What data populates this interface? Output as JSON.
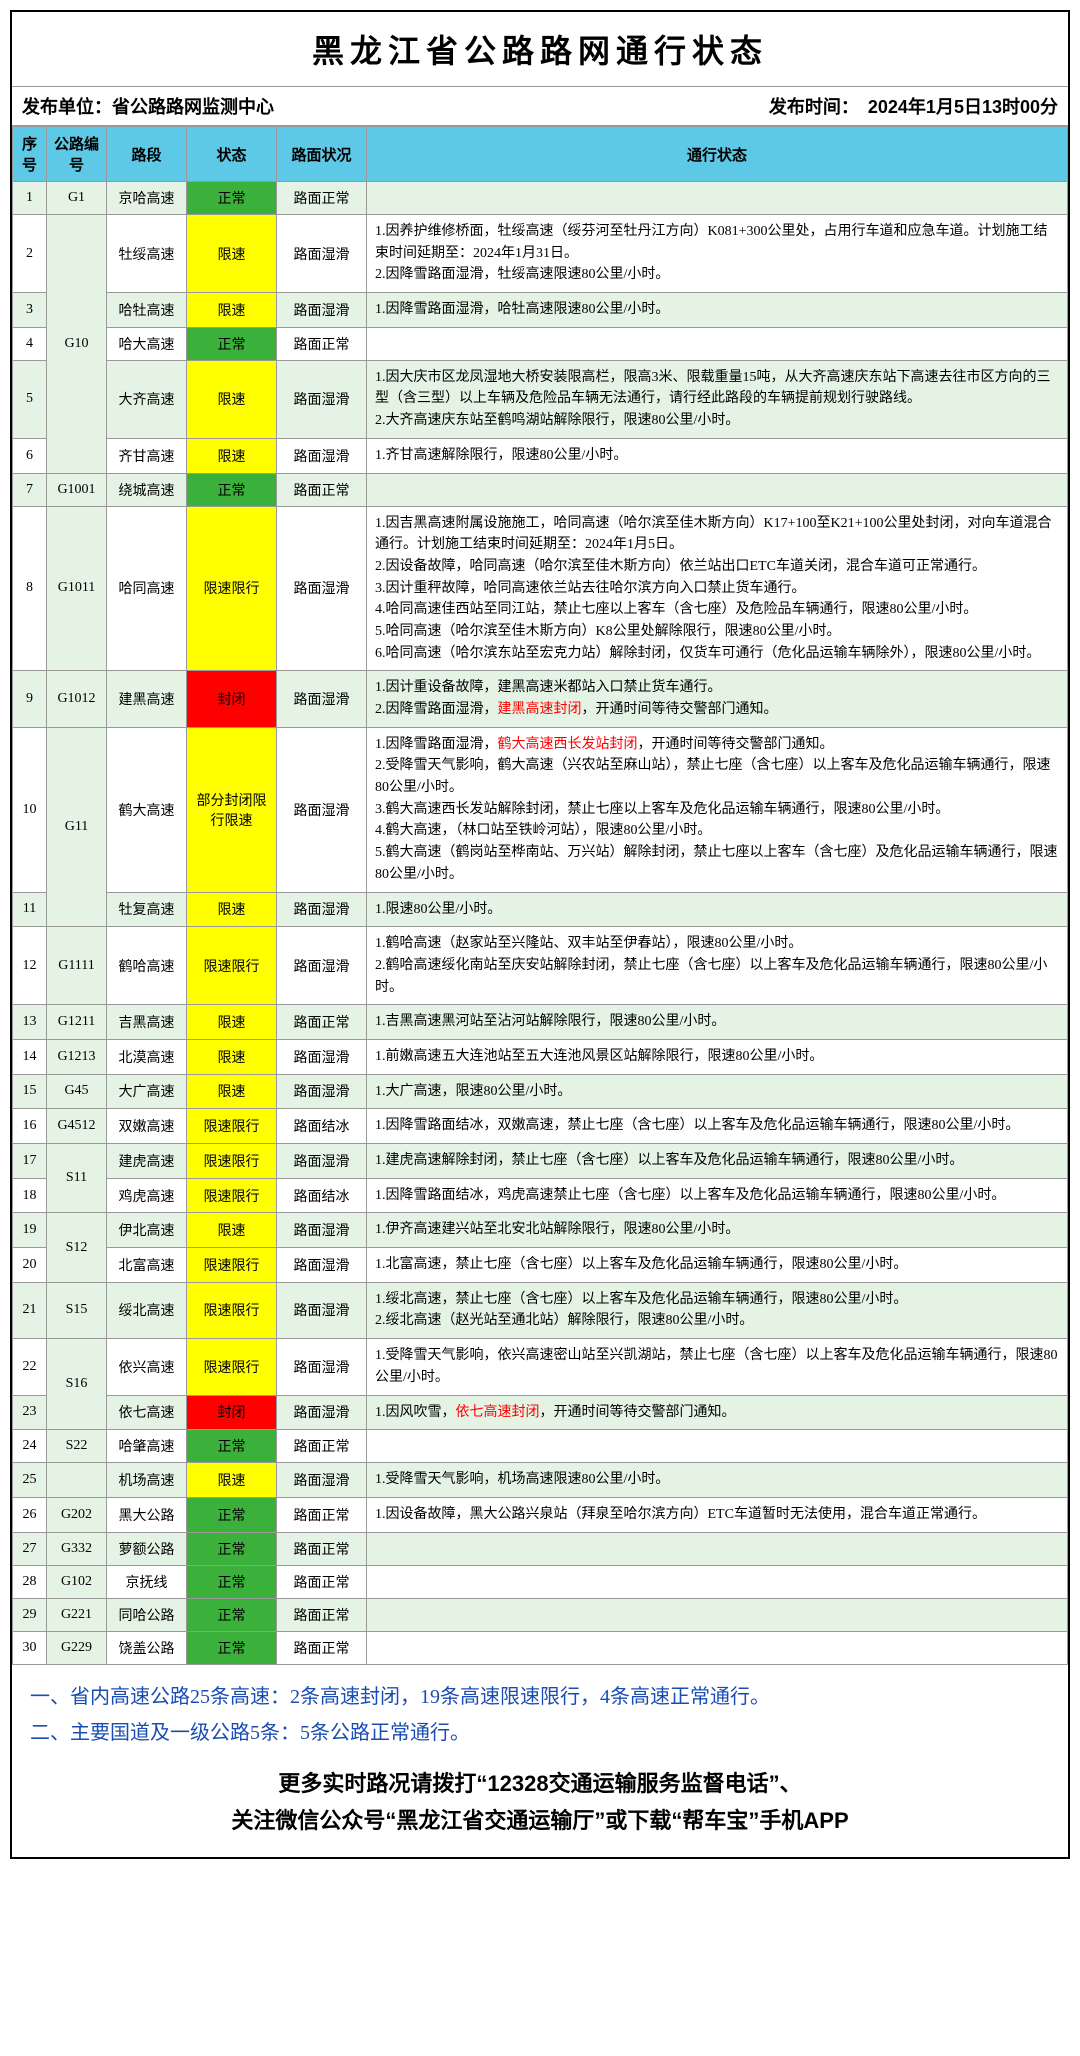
{
  "title": "黑龙江省公路路网通行状态",
  "publisher_label": "发布单位：省公路路网监测中心",
  "publish_time": "发布时间：　2024年1月5日13时00分",
  "headers": [
    "序号",
    "公路编号",
    "路段",
    "状态",
    "路面状况",
    "通行状态"
  ],
  "status_colors": {
    "正常": "status-green",
    "限速": "status-yellow",
    "限速限行": "status-yellow",
    "部分封闭限行限速": "status-yellow",
    "封闭": "status-red"
  },
  "rows": [
    {
      "idx": "1",
      "code": "G1",
      "rs": 1,
      "seg": "京哈高速",
      "status": "正常",
      "road": "路面正常",
      "desc": ""
    },
    {
      "idx": "2",
      "code": "G10",
      "rs": 5,
      "seg": "牡绥高速",
      "status": "限速",
      "road": "路面湿滑",
      "desc": "1.因养护维修桥面，牡绥高速（绥芬河至牡丹江方向）K081+300公里处，占用行车道和应急车道。计划施工结束时间延期至：2024年1月31日。<br>2.因降雪路面湿滑，牡绥高速限速80公里/小时。"
    },
    {
      "idx": "3",
      "seg": "哈牡高速",
      "status": "限速",
      "road": "路面湿滑",
      "desc": "1.因降雪路面湿滑，哈牡高速限速80公里/小时。"
    },
    {
      "idx": "4",
      "seg": "哈大高速",
      "status": "正常",
      "road": "路面正常",
      "desc": ""
    },
    {
      "idx": "5",
      "seg": "大齐高速",
      "status": "限速",
      "road": "路面湿滑",
      "desc": "1.因大庆市区龙凤湿地大桥安装限高栏，限高3米、限载重量15吨，从大齐高速庆东站下高速去往市区方向的三型（含三型）以上车辆及危险品车辆无法通行，请行经此路段的车辆提前规划行驶路线。<br>2.大齐高速庆东站至鹤鸣湖站解除限行，限速80公里/小时。"
    },
    {
      "idx": "6",
      "seg": "齐甘高速",
      "status": "限速",
      "road": "路面湿滑",
      "desc": "1.齐甘高速解除限行，限速80公里/小时。"
    },
    {
      "idx": "7",
      "code": "G1001",
      "rs": 1,
      "seg": "绕城高速",
      "status": "正常",
      "road": "路面正常",
      "desc": ""
    },
    {
      "idx": "8",
      "code": "G1011",
      "rs": 1,
      "seg": "哈同高速",
      "status": "限速限行",
      "road": "路面湿滑",
      "desc": "1.因吉黑高速附属设施施工，哈同高速（哈尔滨至佳木斯方向）K17+100至K21+100公里处封闭，对向车道混合通行。计划施工结束时间延期至：2024年1月5日。<br>2.因设备故障，哈同高速（哈尔滨至佳木斯方向）依兰站出口ETC车道关闭，混合车道可正常通行。<br>3.因计重秤故障，哈同高速依兰站去往哈尔滨方向入口禁止货车通行。<br>4.哈同高速佳西站至同江站，禁止七座以上客车（含七座）及危险品车辆通行，限速80公里/小时。<br>5.哈同高速（哈尔滨至佳木斯方向）K8公里处解除限行，限速80公里/小时。<br>6.哈同高速（哈尔滨东站至宏克力站）解除封闭，仅货车可通行（危化品运输车辆除外），限速80公里/小时。"
    },
    {
      "idx": "9",
      "code": "G1012",
      "rs": 1,
      "seg": "建黑高速",
      "status": "封闭",
      "road": "路面湿滑",
      "desc": "1.因计重设备故障，建黑高速米都站入口禁止货车通行。<br>2.因降雪路面湿滑，<span class='highlight-red'>建黑高速封闭</span>，开通时间等待交警部门通知。"
    },
    {
      "idx": "10",
      "code": "G11",
      "rs": 2,
      "seg": "鹤大高速",
      "status": "部分封闭限行限速",
      "road": "路面湿滑",
      "desc": "1.因降雪路面湿滑，<span class='highlight-red'>鹤大高速西长发站封闭</span>，开通时间等待交警部门通知。<br>2.受降雪天气影响，鹤大高速（兴农站至麻山站），禁止七座（含七座）以上客车及危化品运输车辆通行，限速80公里/小时。<br>3.鹤大高速西长发站解除封闭，禁止七座以上客车及危化品运输车辆通行，限速80公里/小时。<br>4.鹤大高速，（林口站至铁岭河站），限速80公里/小时。<br>5.鹤大高速（鹤岗站至桦南站、万兴站）解除封闭，禁止七座以上客车（含七座）及危化品运输车辆通行，限速80公里/小时。"
    },
    {
      "idx": "11",
      "seg": "牡复高速",
      "status": "限速",
      "road": "路面湿滑",
      "desc": "1.限速80公里/小时。"
    },
    {
      "idx": "12",
      "code": "G1111",
      "rs": 1,
      "seg": "鹤哈高速",
      "status": "限速限行",
      "road": "路面湿滑",
      "desc": "1.鹤哈高速（赵家站至兴隆站、双丰站至伊春站），限速80公里/小时。<br>2.鹤哈高速绥化南站至庆安站解除封闭，禁止七座（含七座）以上客车及危化品运输车辆通行，限速80公里/小时。"
    },
    {
      "idx": "13",
      "code": "G1211",
      "rs": 1,
      "seg": "吉黑高速",
      "status": "限速",
      "road": "路面正常",
      "desc": "1.吉黑高速黑河站至沾河站解除限行，限速80公里/小时。"
    },
    {
      "idx": "14",
      "code": "G1213",
      "rs": 1,
      "seg": "北漠高速",
      "status": "限速",
      "road": "路面湿滑",
      "desc": "1.前嫩高速五大连池站至五大连池风景区站解除限行，限速80公里/小时。"
    },
    {
      "idx": "15",
      "code": "G45",
      "rs": 1,
      "seg": "大广高速",
      "status": "限速",
      "road": "路面湿滑",
      "desc": "1.大广高速，限速80公里/小时。"
    },
    {
      "idx": "16",
      "code": "G4512",
      "rs": 1,
      "seg": "双嫩高速",
      "status": "限速限行",
      "road": "路面结冰",
      "desc": "1.因降雪路面结冰，双嫩高速，禁止七座（含七座）以上客车及危化品运输车辆通行，限速80公里/小时。"
    },
    {
      "idx": "17",
      "code": "S11",
      "rs": 2,
      "seg": "建虎高速",
      "status": "限速限行",
      "road": "路面湿滑",
      "desc": "1.建虎高速解除封闭，禁止七座（含七座）以上客车及危化品运输车辆通行，限速80公里/小时。"
    },
    {
      "idx": "18",
      "seg": "鸡虎高速",
      "status": "限速限行",
      "road": "路面结冰",
      "desc": "1.因降雪路面结冰，鸡虎高速禁止七座（含七座）以上客车及危化品运输车辆通行，限速80公里/小时。"
    },
    {
      "idx": "19",
      "code": "S12",
      "rs": 2,
      "seg": "伊北高速",
      "status": "限速",
      "road": "路面湿滑",
      "desc": "1.伊齐高速建兴站至北安北站解除限行，限速80公里/小时。"
    },
    {
      "idx": "20",
      "seg": "北富高速",
      "status": "限速限行",
      "road": "路面湿滑",
      "desc": "1.北富高速，禁止七座（含七座）以上客车及危化品运输车辆通行，限速80公里/小时。"
    },
    {
      "idx": "21",
      "code": "S15",
      "rs": 1,
      "seg": "绥北高速",
      "status": "限速限行",
      "road": "路面湿滑",
      "desc": "1.绥北高速，禁止七座（含七座）以上客车及危化品运输车辆通行，限速80公里/小时。<br>2.绥北高速（赵光站至通北站）解除限行，限速80公里/小时。"
    },
    {
      "idx": "22",
      "code": "S16",
      "rs": 2,
      "seg": "依兴高速",
      "status": "限速限行",
      "road": "路面湿滑",
      "desc": "1.受降雪天气影响，依兴高速密山站至兴凯湖站，禁止七座（含七座）以上客车及危化品运输车辆通行，限速80公里/小时。"
    },
    {
      "idx": "23",
      "seg": "依七高速",
      "status": "封闭",
      "road": "路面湿滑",
      "desc": "1.因风吹雪，<span class='highlight-red'>依七高速封闭</span>，开通时间等待交警部门通知。"
    },
    {
      "idx": "24",
      "code": "S22",
      "rs": 1,
      "seg": "哈肇高速",
      "status": "正常",
      "road": "路面正常",
      "desc": ""
    },
    {
      "idx": "25",
      "code": "",
      "rs": 1,
      "seg": "机场高速",
      "status": "限速",
      "road": "路面湿滑",
      "desc": "1.受降雪天气影响，机场高速限速80公里/小时。"
    },
    {
      "idx": "26",
      "code": "G202",
      "rs": 1,
      "seg": "黑大公路",
      "status": "正常",
      "road": "路面正常",
      "desc": "1.因设备故障，黑大公路兴泉站（拜泉至哈尔滨方向）ETC车道暂时无法使用，混合车道正常通行。"
    },
    {
      "idx": "27",
      "code": "G332",
      "rs": 1,
      "seg": "萝额公路",
      "status": "正常",
      "road": "路面正常",
      "desc": ""
    },
    {
      "idx": "28",
      "code": "G102",
      "rs": 1,
      "seg": "京抚线",
      "status": "正常",
      "road": "路面正常",
      "desc": ""
    },
    {
      "idx": "29",
      "code": "G221",
      "rs": 1,
      "seg": "同哈公路",
      "status": "正常",
      "road": "路面正常",
      "desc": ""
    },
    {
      "idx": "30",
      "code": "G229",
      "rs": 1,
      "seg": "饶盖公路",
      "status": "正常",
      "road": "路面正常",
      "desc": ""
    }
  ],
  "summary1": "一、省内高速公路25条高速：2条高速封闭，19条高速限速限行，4条高速正常通行。",
  "summary2": "二、主要国道及一级公路5条：5条公路正常通行。",
  "footer1": "更多实时路况请拨打“12328交通运输服务监督电话”、",
  "footer2": "关注微信公众号“黑龙江省交通运输厅”或下载“帮车宝”手机APP"
}
